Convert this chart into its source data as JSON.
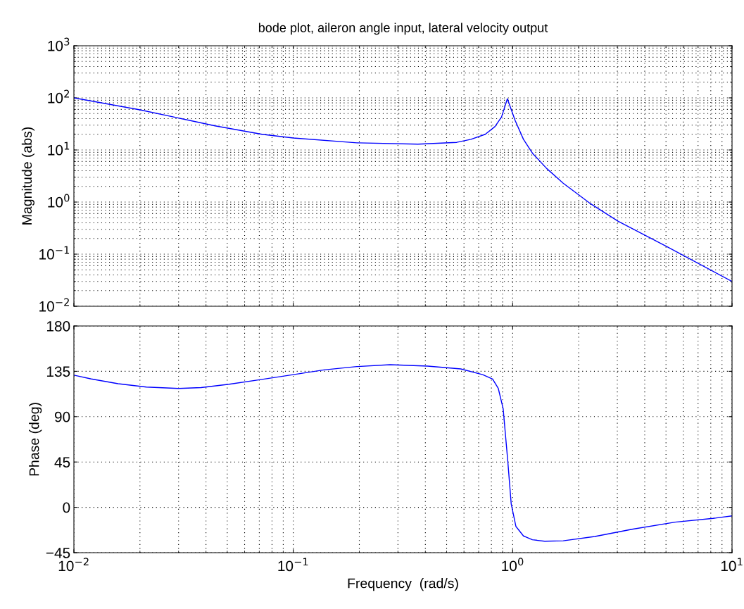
{
  "chart_data": [
    {
      "type": "line",
      "title": "bode plot, aileron angle input, lateral velocity output",
      "ylabel": "Magnitude (abs)",
      "log": "xy",
      "grid": true,
      "tick_labels": "y",
      "xlim": [
        0.01,
        10
      ],
      "xticks": [
        {
          "value": 0.01,
          "label": null
        },
        {
          "value": 0.1,
          "label": null
        },
        {
          "value": 1,
          "label": null
        },
        {
          "value": 10,
          "label": null
        }
      ],
      "ylim": [
        0.01,
        1000
      ],
      "yticks": [
        {
          "value": 0.01,
          "label": "10$^{−2}$"
        },
        {
          "value": 0.1,
          "label": "10$^{−1}$"
        },
        {
          "value": 1,
          "label": "10$^{0}$"
        },
        {
          "value": 10,
          "label": "10$^{1}$"
        },
        {
          "value": 100,
          "label": "10$^{2}$"
        },
        {
          "value": 1000,
          "label": "10$^{3}$"
        }
      ],
      "line_style": "solid",
      "marker": "none",
      "x": [
        0.01,
        0.02,
        0.03,
        0.044,
        0.072,
        0.1,
        0.195,
        0.37,
        0.556,
        0.646,
        0.75,
        0.83,
        0.89,
        0.946,
        1.026,
        1.12,
        1.23,
        1.43,
        1.7,
        2.24,
        3.02,
        5.0,
        10
      ],
      "series": [
        {
          "color": "#0000ff",
          "values": [
            100,
            59,
            41,
            29,
            20,
            17,
            13.7,
            12.9,
            14,
            16,
            20,
            28,
            43,
            96,
            37,
            16,
            8.7,
            4.4,
            2.3,
            0.96,
            0.43,
            0.142,
            0.03
          ]
        }
      ]
    },
    {
      "type": "line",
      "xlabel": "Frequency  (rad/s)",
      "ylabel": "Phase (deg)",
      "log": "x",
      "grid": true,
      "xlim": [
        0.01,
        10
      ],
      "xticks": [
        {
          "value": 0.01,
          "label": "10$^{−2}$"
        },
        {
          "value": 0.1,
          "label": "10$^{−1}$"
        },
        {
          "value": 1,
          "label": "10$^{0}$"
        },
        {
          "value": 10,
          "label": "10$^{1}$"
        }
      ],
      "ylim": [
        -45,
        180
      ],
      "yticks": [
        {
          "value": -45,
          "label": "−45"
        },
        0,
        45,
        90,
        135,
        180
      ],
      "line_style": "solid",
      "marker": "none",
      "x": [
        0.01,
        0.012,
        0.0159,
        0.0214,
        0.03,
        0.038,
        0.051,
        0.072,
        0.1,
        0.138,
        0.195,
        0.276,
        0.41,
        0.58,
        0.73,
        0.81,
        0.86,
        0.905,
        0.95,
        0.985,
        1.035,
        1.12,
        1.23,
        1.4,
        1.7,
        2.37,
        3.5,
        5.5,
        8.2,
        10
      ],
      "series": [
        {
          "color": "#0000ff",
          "values": [
            131.2,
            127.4,
            122.7,
            119.4,
            118,
            118.9,
            122.2,
            127,
            131.7,
            136.4,
            139.7,
            141.6,
            140.2,
            137.4,
            131.7,
            127.4,
            118,
            98,
            46,
            3.3,
            -19,
            -28.4,
            -32.2,
            -33.6,
            -33.2,
            -28.9,
            -21.8,
            -14.7,
            -10.9,
            -8.5
          ]
        }
      ]
    }
  ]
}
